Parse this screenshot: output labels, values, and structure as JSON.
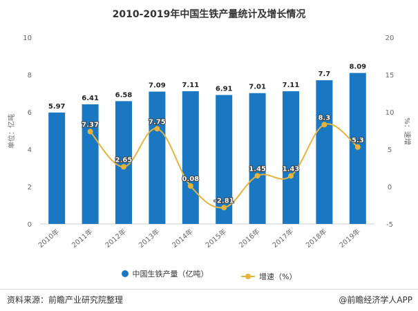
{
  "title": "2010-2019年中国生铁产量统计及增长情况",
  "chart_data": {
    "type": "bar",
    "categories": [
      "2010年",
      "2011年",
      "2012年",
      "2013年",
      "2014年",
      "2015年",
      "2016年",
      "2017年",
      "2018年",
      "2019年"
    ],
    "series": [
      {
        "name": "中国生铁产量（亿吨）",
        "type": "bar",
        "axis": "left",
        "values": [
          5.97,
          6.41,
          6.58,
          7.09,
          7.11,
          6.91,
          7.01,
          7.11,
          7.7,
          8.09
        ],
        "labels": [
          "5.97",
          "6.41",
          "6.58",
          "7.09",
          "7.11",
          "6.91",
          "7.01",
          "7.11",
          "7.7",
          "8.09"
        ]
      },
      {
        "name": "增速（%）",
        "type": "line",
        "axis": "right",
        "values": [
          null,
          7.37,
          2.65,
          7.75,
          0.08,
          -2.81,
          1.45,
          1.43,
          8.3,
          5.3
        ],
        "labels": [
          "",
          "7.37",
          "2.65",
          "7.75",
          "0.08",
          "-2.81",
          "1.45",
          "1.43",
          "8.3",
          "5.3"
        ]
      }
    ],
    "ylabel": "单位：亿吨",
    "y2label": "%：速增",
    "ylim": [
      0,
      10
    ],
    "y2lim": [
      -5,
      20
    ],
    "yticks": [
      "0",
      "2",
      "4",
      "6",
      "8",
      "10"
    ],
    "y2ticks": [
      "-5",
      "0",
      "5",
      "10",
      "15",
      "20"
    ],
    "grid": false,
    "legend_position": "bottom",
    "colors": {
      "bar": "#1a78c2",
      "line": "#e6b33d"
    }
  },
  "footer": {
    "source": "资料来源：前瞻产业研究院整理",
    "brand": "@前瞻经济学人APP"
  }
}
